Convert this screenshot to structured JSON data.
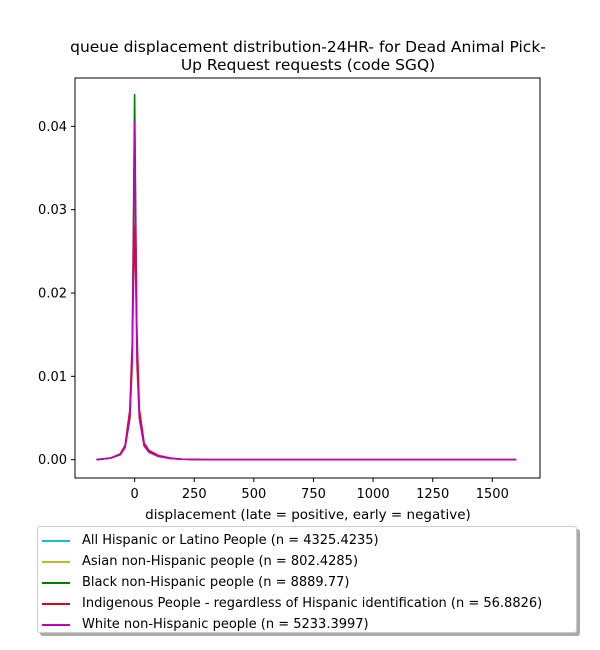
{
  "chart_data": {
    "type": "line",
    "title_line1": "queue displacement distribution-24HR-  for Dead Animal Pick-",
    "title_line2": "Up Request  requests (code SGQ)",
    "xlabel": "displacement (late = positive, early = negative)",
    "ylabel": "",
    "xlim": [
      -250,
      1700
    ],
    "ylim": [
      -0.0022,
      0.0458
    ],
    "xticks": [
      "0",
      "250",
      "500",
      "750",
      "1000",
      "1250",
      "1500"
    ],
    "xtick_values": [
      0,
      250,
      500,
      750,
      1000,
      1250,
      1500
    ],
    "yticks": [
      "0.00",
      "0.01",
      "0.02",
      "0.03",
      "0.04"
    ],
    "ytick_values": [
      0.0,
      0.01,
      0.02,
      0.03,
      0.04
    ],
    "grid": false,
    "legend_position": "below plot",
    "series": [
      {
        "name": "All Hispanic or Latino People (n = 4325.4235)",
        "color": "#17becf",
        "x": [
          -160,
          -100,
          -60,
          -40,
          -20,
          -10,
          0,
          10,
          20,
          40,
          60,
          100,
          150,
          200,
          300,
          1600
        ],
        "y": [
          0.0,
          0.0002,
          0.0006,
          0.0015,
          0.005,
          0.012,
          0.034,
          0.012,
          0.005,
          0.0017,
          0.0009,
          0.0004,
          0.00015,
          5e-05,
          0.0,
          0.0
        ]
      },
      {
        "name": "Asian non-Hispanic people (n = 802.4285)",
        "color": "#bcbd22",
        "x": [
          -160,
          -100,
          -60,
          -40,
          -20,
          -10,
          0,
          10,
          20,
          40,
          60,
          100,
          150,
          200,
          300,
          1600
        ],
        "y": [
          0.0,
          0.0002,
          0.0006,
          0.0014,
          0.005,
          0.011,
          0.031,
          0.011,
          0.005,
          0.0016,
          0.0009,
          0.0004,
          0.00015,
          5e-05,
          0.0,
          0.0
        ]
      },
      {
        "name": "Black non-Hispanic people (n = 8889.77)",
        "color": "#008000",
        "x": [
          -160,
          -100,
          -60,
          -40,
          -20,
          -10,
          0,
          10,
          20,
          40,
          60,
          100,
          150,
          200,
          300,
          1600
        ],
        "y": [
          0.0,
          0.0002,
          0.0006,
          0.0015,
          0.005,
          0.013,
          0.0438,
          0.013,
          0.005,
          0.0017,
          0.0009,
          0.0004,
          0.00015,
          5e-05,
          0.0,
          0.0
        ]
      },
      {
        "name": "Indigenous People - regardless of Hispanic identification (n = 56.8826)",
        "color": "#e6001a",
        "x": [
          -160,
          -100,
          -60,
          -40,
          -20,
          -10,
          0,
          10,
          20,
          40,
          60,
          100,
          150,
          200,
          300,
          1600
        ],
        "y": [
          0.0,
          0.0002,
          0.0007,
          0.0017,
          0.006,
          0.014,
          0.028,
          0.015,
          0.006,
          0.002,
          0.0011,
          0.0005,
          0.0002,
          5e-05,
          0.0,
          0.0
        ]
      },
      {
        "name": "White non-Hispanic people (n = 5233.3997)",
        "color": "#bf00bf",
        "x": [
          -160,
          -100,
          -60,
          -40,
          -20,
          -10,
          0,
          10,
          20,
          40,
          60,
          100,
          150,
          200,
          300,
          1600
        ],
        "y": [
          0.0,
          0.0002,
          0.0006,
          0.0015,
          0.005,
          0.012,
          0.0405,
          0.012,
          0.005,
          0.0017,
          0.0009,
          0.0004,
          0.00015,
          5e-05,
          0.0,
          0.0
        ]
      }
    ]
  }
}
